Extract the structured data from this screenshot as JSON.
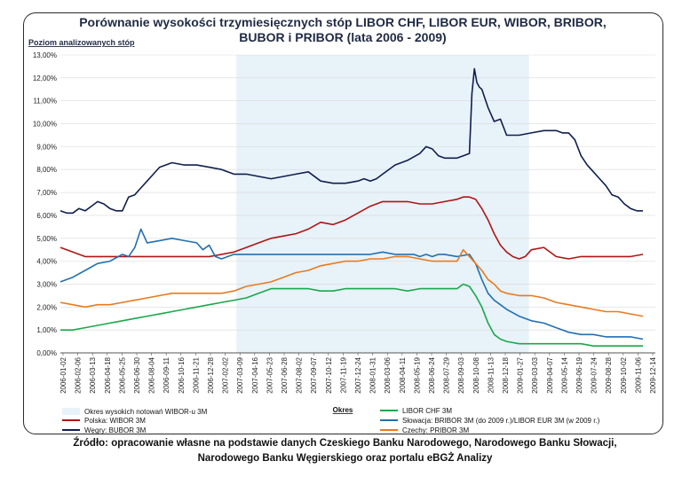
{
  "chart_data": {
    "type": "line",
    "title_lines": [
      "Porównanie wysokości trzymiesięcznych stóp LIBOR CHF, LIBOR EUR, WIBOR, BRIBOR,",
      "BUBOR i PRIBOR (lata 2006 - 2009)"
    ],
    "ylabel": "Poziom analizowanych stóp",
    "xlabel": "Okres",
    "ylim": [
      0,
      13
    ],
    "yticks": [
      "0,00%",
      "1,00%",
      "2,00%",
      "3,00%",
      "4,00%",
      "5,00%",
      "6,00%",
      "7,00%",
      "8,00%",
      "9,00%",
      "10,00%",
      "11,00%",
      "12,00%",
      "13,00%"
    ],
    "xlim": [
      0,
      48
    ],
    "x_tick_labels": [
      "2006-01-02",
      "2006-02-06",
      "2006-03-13",
      "2006-04-18",
      "2006-05-25",
      "2006-06-30",
      "2006-08-04",
      "2006-09-11",
      "2006-10-16",
      "2006-11-21",
      "2006-12-28",
      "2007-02-02",
      "2007-03-09",
      "2007-04-16",
      "2007-05-23",
      "2007-06-28",
      "2007-08-02",
      "2007-09-07",
      "2007-10-12",
      "2007-11-19",
      "2007-12-24",
      "2008-01-31",
      "2008-03-06",
      "2008-04-11",
      "2008-05-19",
      "2008-06-24",
      "2008-07-29",
      "2008-09-03",
      "2008-10-08",
      "2008-11-13",
      "2008-12-18",
      "2009-01-27",
      "2009-03-03",
      "2009-04-07",
      "2009-05-14",
      "2009-06-19",
      "2009-07-24",
      "2009-08-28",
      "2009-10-02",
      "2009-11-06",
      "2009-12-14"
    ],
    "shaded_range": [
      14.2,
      37.8
    ],
    "series": [
      {
        "name": "Węgry: BUBOR 3M",
        "color": "#0f1f4f",
        "x": [
          0,
          0.5,
          1,
          1.5,
          2,
          2.5,
          3,
          3.5,
          4,
          4.5,
          5,
          5.5,
          6,
          6.5,
          7,
          7.5,
          8,
          8.5,
          9,
          10,
          11,
          12,
          13,
          14,
          15,
          16,
          17,
          18,
          19,
          20,
          21,
          22,
          23,
          24,
          24.5,
          25,
          25.5,
          26,
          27,
          28,
          29,
          29.5,
          30,
          30.5,
          31,
          31.5,
          32,
          32.5,
          33,
          33.2,
          33.4,
          33.6,
          33.8,
          34,
          34.5,
          35,
          35.5,
          36,
          36.5,
          37,
          38,
          39,
          40,
          40.5,
          41,
          41.5,
          42,
          42.5,
          43,
          43.5,
          44,
          44.5,
          45,
          45.5,
          46,
          46.5,
          47
        ],
        "values": [
          6.2,
          6.1,
          6.1,
          6.3,
          6.2,
          6.4,
          6.6,
          6.5,
          6.3,
          6.2,
          6.2,
          6.8,
          6.9,
          7.2,
          7.5,
          7.8,
          8.1,
          8.2,
          8.3,
          8.2,
          8.2,
          8.1,
          8.0,
          7.8,
          7.8,
          7.7,
          7.6,
          7.7,
          7.8,
          7.9,
          7.5,
          7.4,
          7.4,
          7.5,
          7.6,
          7.5,
          7.6,
          7.8,
          8.2,
          8.4,
          8.7,
          9.0,
          8.9,
          8.6,
          8.5,
          8.5,
          8.5,
          8.6,
          8.7,
          11.3,
          12.4,
          11.8,
          11.6,
          11.5,
          10.7,
          10.1,
          10.2,
          9.5,
          9.5,
          9.5,
          9.6,
          9.7,
          9.7,
          9.6,
          9.6,
          9.3,
          8.6,
          8.2,
          7.9,
          7.6,
          7.3,
          6.9,
          6.8,
          6.5,
          6.3,
          6.2,
          6.2
        ]
      },
      {
        "name": "Polska: WIBOR 3M",
        "color": "#b01414",
        "x": [
          0,
          1,
          2,
          3,
          4,
          5,
          6,
          7,
          8,
          9,
          10,
          11,
          12,
          13,
          14,
          15,
          16,
          17,
          18,
          19,
          20,
          21,
          22,
          23,
          24,
          25,
          26,
          27,
          28,
          29,
          30,
          31,
          32,
          32.5,
          33,
          33.5,
          34,
          34.5,
          35,
          35.5,
          36,
          36.5,
          37,
          37.5,
          38,
          39,
          40,
          41,
          42,
          43,
          44,
          45,
          46,
          47
        ],
        "values": [
          4.6,
          4.4,
          4.2,
          4.2,
          4.2,
          4.2,
          4.2,
          4.2,
          4.2,
          4.2,
          4.2,
          4.2,
          4.2,
          4.3,
          4.4,
          4.6,
          4.8,
          5.0,
          5.1,
          5.2,
          5.4,
          5.7,
          5.6,
          5.8,
          6.1,
          6.4,
          6.6,
          6.6,
          6.6,
          6.5,
          6.5,
          6.6,
          6.7,
          6.8,
          6.8,
          6.7,
          6.3,
          5.8,
          5.2,
          4.7,
          4.4,
          4.2,
          4.1,
          4.2,
          4.5,
          4.6,
          4.2,
          4.1,
          4.2,
          4.2,
          4.2,
          4.2,
          4.2,
          4.3
        ]
      },
      {
        "name": "Słowacja: BRIBOR 3M (do 2009 r.)/LIBOR EUR 3M (w 2009 r.)",
        "color": "#1f6fb2",
        "x": [
          0,
          1,
          2,
          3,
          4,
          5,
          5.5,
          6,
          6.5,
          7,
          8,
          9,
          10,
          11,
          11.5,
          12,
          12.5,
          13,
          13.5,
          14,
          14.5,
          15,
          16,
          17,
          18,
          19,
          20,
          21,
          22,
          23,
          24,
          25,
          26,
          27,
          28,
          28.5,
          29,
          29.5,
          30,
          30.5,
          31,
          32,
          33,
          33.5,
          34,
          34.5,
          35,
          35.5,
          36,
          37,
          38,
          39,
          40,
          41,
          42,
          43,
          44,
          45,
          46,
          47
        ],
        "values": [
          3.1,
          3.3,
          3.6,
          3.9,
          4.0,
          4.3,
          4.2,
          4.6,
          5.4,
          4.8,
          4.9,
          5.0,
          4.9,
          4.8,
          4.5,
          4.7,
          4.2,
          4.1,
          4.2,
          4.3,
          4.3,
          4.3,
          4.3,
          4.3,
          4.3,
          4.3,
          4.3,
          4.3,
          4.3,
          4.3,
          4.3,
          4.3,
          4.4,
          4.3,
          4.3,
          4.3,
          4.2,
          4.3,
          4.2,
          4.3,
          4.3,
          4.2,
          4.3,
          3.9,
          3.2,
          2.6,
          2.3,
          2.1,
          1.9,
          1.6,
          1.4,
          1.3,
          1.1,
          0.9,
          0.8,
          0.8,
          0.7,
          0.7,
          0.7,
          0.6
        ]
      },
      {
        "name": "LIBOR CHF 3M",
        "color": "#19a84b",
        "x": [
          0,
          1,
          2,
          3,
          4,
          5,
          6,
          7,
          8,
          9,
          10,
          11,
          12,
          13,
          14,
          15,
          16,
          17,
          18,
          19,
          20,
          21,
          22,
          23,
          24,
          25,
          26,
          27,
          28,
          29,
          30,
          31,
          32,
          32.5,
          33,
          33.5,
          34,
          34.5,
          35,
          35.5,
          36,
          37,
          38,
          39,
          40,
          41,
          42,
          43,
          44,
          45,
          46,
          47
        ],
        "values": [
          1.0,
          1.0,
          1.1,
          1.2,
          1.3,
          1.4,
          1.5,
          1.6,
          1.7,
          1.8,
          1.9,
          2.0,
          2.1,
          2.2,
          2.3,
          2.4,
          2.6,
          2.8,
          2.8,
          2.8,
          2.8,
          2.7,
          2.7,
          2.8,
          2.8,
          2.8,
          2.8,
          2.8,
          2.7,
          2.8,
          2.8,
          2.8,
          2.8,
          3.0,
          2.9,
          2.5,
          2.0,
          1.3,
          0.8,
          0.6,
          0.5,
          0.4,
          0.4,
          0.4,
          0.4,
          0.4,
          0.4,
          0.3,
          0.3,
          0.3,
          0.3,
          0.3
        ]
      },
      {
        "name": "Czechy: PRIBOR 3M",
        "color": "#e87a1e",
        "x": [
          0,
          1,
          2,
          3,
          4,
          5,
          6,
          7,
          8,
          9,
          10,
          11,
          12,
          13,
          14,
          15,
          16,
          17,
          18,
          19,
          20,
          21,
          22,
          23,
          24,
          25,
          26,
          27,
          28,
          29,
          30,
          31,
          32,
          32.5,
          33,
          33.5,
          34,
          34.5,
          35,
          35.5,
          36,
          37,
          38,
          39,
          40,
          41,
          42,
          43,
          44,
          45,
          46,
          47
        ],
        "values": [
          2.2,
          2.1,
          2.0,
          2.1,
          2.1,
          2.2,
          2.3,
          2.4,
          2.5,
          2.6,
          2.6,
          2.6,
          2.6,
          2.6,
          2.7,
          2.9,
          3.0,
          3.1,
          3.3,
          3.5,
          3.6,
          3.8,
          3.9,
          4.0,
          4.0,
          4.1,
          4.1,
          4.2,
          4.2,
          4.1,
          4.0,
          4.0,
          4.0,
          4.5,
          4.2,
          3.9,
          3.6,
          3.2,
          3.0,
          2.7,
          2.6,
          2.5,
          2.5,
          2.4,
          2.2,
          2.1,
          2.0,
          1.9,
          1.8,
          1.8,
          1.7,
          1.6
        ]
      }
    ],
    "legend": {
      "shade_label": "Okres wysokich notowań WIBOR-u 3M",
      "placement": "bottom"
    }
  },
  "source": {
    "line1": "Źródło: opracowanie własne na podstawie danych Czeskiego Banku Narodowego, Narodowego Banku Słowacji,",
    "line2": "Narodowego Banku Węgierskiego oraz portalu eBGŻ Analizy"
  }
}
